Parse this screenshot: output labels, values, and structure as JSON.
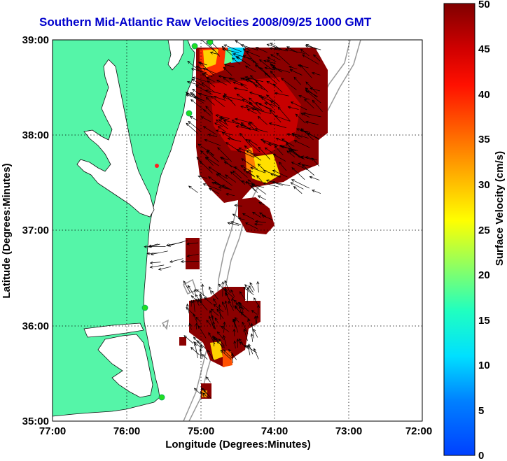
{
  "title": "Southern Mid-Atlantic Raw Velocities 2008/09/25 1000 GMT",
  "x_axis": {
    "label": "Longitude (Degrees:Minutes)",
    "ticks": [
      "77:00",
      "76:00",
      "75:00",
      "74:00",
      "73:00",
      "72:00"
    ]
  },
  "y_axis": {
    "label": "Latitude (Degrees:Minutes)",
    "ticks": [
      "39:00",
      "38:00",
      "37:00",
      "36:00",
      "35:00"
    ]
  },
  "colorbar": {
    "label": "Surface Velocity (cm/s)",
    "ticks": [
      "50",
      "45",
      "40",
      "35",
      "30",
      "25",
      "20",
      "15",
      "10",
      "5",
      "0"
    ],
    "min": 0,
    "max": 50
  },
  "map": {
    "lon_range": [
      -77,
      -72
    ],
    "lat_range": [
      35,
      39
    ],
    "grid": "dotted",
    "land_color": "#55f5a8",
    "water_color": "#ffffff",
    "station_color": "#22dd22"
  }
}
